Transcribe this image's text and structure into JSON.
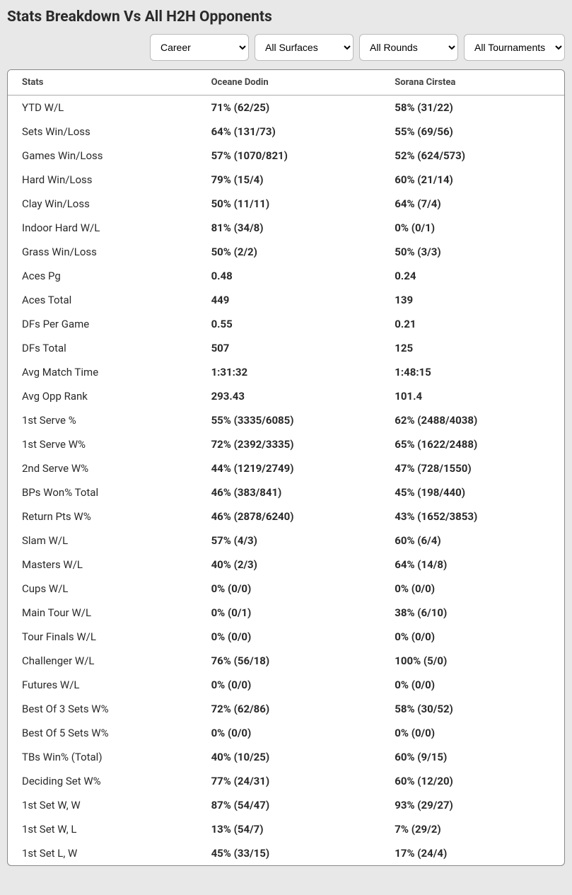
{
  "title": "Stats Breakdown Vs All H2H Opponents",
  "filters": {
    "period": "Career",
    "surface": "All Surfaces",
    "round": "All Rounds",
    "tournament": "All Tournaments"
  },
  "columns": {
    "stats": "Stats",
    "p1": "Oceane Dodin",
    "p2": "Sorana Cirstea"
  },
  "rows": [
    {
      "label": "YTD W/L",
      "p1": "71% (62/25)",
      "p2": "58% (31/22)"
    },
    {
      "label": "Sets Win/Loss",
      "p1": "64% (131/73)",
      "p2": "55% (69/56)"
    },
    {
      "label": "Games Win/Loss",
      "p1": "57% (1070/821)",
      "p2": "52% (624/573)"
    },
    {
      "label": "Hard Win/Loss",
      "p1": "79% (15/4)",
      "p2": "60% (21/14)"
    },
    {
      "label": "Clay Win/Loss",
      "p1": "50% (11/11)",
      "p2": "64% (7/4)"
    },
    {
      "label": "Indoor Hard W/L",
      "p1": "81% (34/8)",
      "p2": "0% (0/1)"
    },
    {
      "label": "Grass Win/Loss",
      "p1": "50% (2/2)",
      "p2": "50% (3/3)"
    },
    {
      "label": "Aces Pg",
      "p1": "0.48",
      "p2": "0.24"
    },
    {
      "label": "Aces Total",
      "p1": "449",
      "p2": "139"
    },
    {
      "label": "DFs Per Game",
      "p1": "0.55",
      "p2": "0.21"
    },
    {
      "label": "DFs Total",
      "p1": "507",
      "p2": "125"
    },
    {
      "label": "Avg Match Time",
      "p1": "1:31:32",
      "p2": "1:48:15"
    },
    {
      "label": "Avg Opp Rank",
      "p1": "293.43",
      "p2": "101.4"
    },
    {
      "label": "1st Serve %",
      "p1": "55% (3335/6085)",
      "p2": "62% (2488/4038)"
    },
    {
      "label": "1st Serve W%",
      "p1": "72% (2392/3335)",
      "p2": "65% (1622/2488)"
    },
    {
      "label": "2nd Serve W%",
      "p1": "44% (1219/2749)",
      "p2": "47% (728/1550)"
    },
    {
      "label": "BPs Won% Total",
      "p1": "46% (383/841)",
      "p2": "45% (198/440)"
    },
    {
      "label": "Return Pts W%",
      "p1": "46% (2878/6240)",
      "p2": "43% (1652/3853)"
    },
    {
      "label": "Slam W/L",
      "p1": "57% (4/3)",
      "p2": "60% (6/4)"
    },
    {
      "label": "Masters W/L",
      "p1": "40% (2/3)",
      "p2": "64% (14/8)"
    },
    {
      "label": "Cups W/L",
      "p1": "0% (0/0)",
      "p2": "0% (0/0)"
    },
    {
      "label": "Main Tour W/L",
      "p1": "0% (0/1)",
      "p2": "38% (6/10)"
    },
    {
      "label": "Tour Finals W/L",
      "p1": "0% (0/0)",
      "p2": "0% (0/0)"
    },
    {
      "label": "Challenger W/L",
      "p1": "76% (56/18)",
      "p2": "100% (5/0)"
    },
    {
      "label": "Futures W/L",
      "p1": "0% (0/0)",
      "p2": "0% (0/0)"
    },
    {
      "label": "Best Of 3 Sets W%",
      "p1": "72% (62/86)",
      "p2": "58% (30/52)"
    },
    {
      "label": "Best Of 5 Sets W%",
      "p1": "0% (0/0)",
      "p2": "0% (0/0)"
    },
    {
      "label": "TBs Win% (Total)",
      "p1": "40% (10/25)",
      "p2": "60% (9/15)"
    },
    {
      "label": "Deciding Set W%",
      "p1": "77% (24/31)",
      "p2": "60% (12/20)"
    },
    {
      "label": "1st Set W, W",
      "p1": "87% (54/47)",
      "p2": "93% (29/27)"
    },
    {
      "label": "1st Set W, L",
      "p1": "13% (54/7)",
      "p2": "7% (29/2)"
    },
    {
      "label": "1st Set L, W",
      "p1": "45% (33/15)",
      "p2": "17% (24/4)"
    }
  ]
}
